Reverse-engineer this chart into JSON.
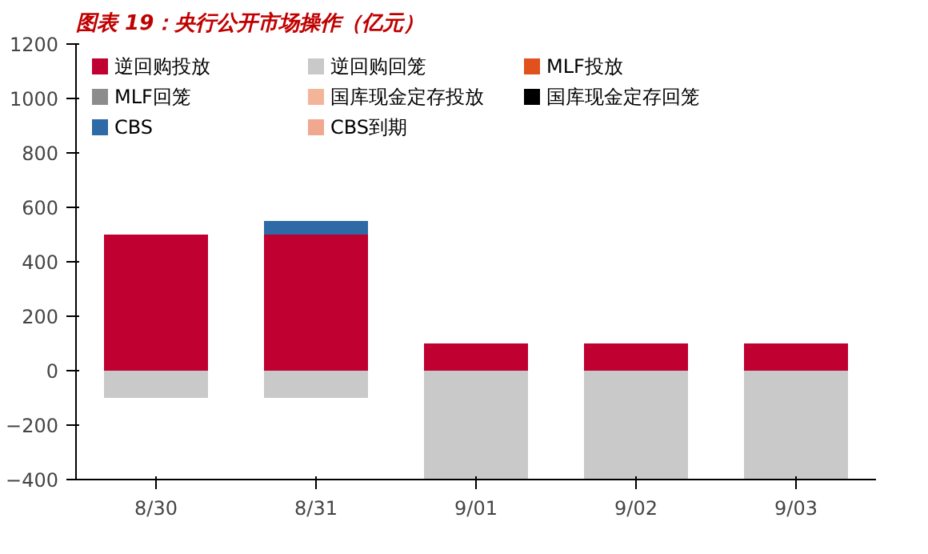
{
  "chart_data": {
    "type": "bar",
    "title": "图表 19：央行公开市场操作（亿元）",
    "categories": [
      "8/30",
      "8/31",
      "9/01",
      "9/02",
      "9/03"
    ],
    "stacked": true,
    "ylim": [
      -400,
      1200
    ],
    "yticks": [
      -400,
      -200,
      0,
      200,
      400,
      600,
      800,
      1000,
      1200
    ],
    "grid": false,
    "legend": "top",
    "series": [
      {
        "name": "逆回购投放",
        "color": "#c00030",
        "values": [
          500,
          500,
          100,
          100,
          100
        ]
      },
      {
        "name": "逆回购回笼",
        "color": "#c9c9c9",
        "values": [
          -100,
          -100,
          -400,
          -400,
          -400
        ]
      },
      {
        "name": "MLF投放",
        "color": "#e2501e",
        "values": [
          null,
          null,
          null,
          null,
          null
        ]
      },
      {
        "name": "MLF回笼",
        "color": "#8c8c8c",
        "values": [
          null,
          null,
          null,
          null,
          null
        ]
      },
      {
        "name": "国库现金定存投放",
        "color": "#f4b49a",
        "values": [
          null,
          null,
          null,
          null,
          null
        ]
      },
      {
        "name": "国库现金定存回笼",
        "color": "#000000",
        "values": [
          null,
          null,
          null,
          null,
          null
        ]
      },
      {
        "name": "CBS",
        "color": "#2e6aa6",
        "values": [
          null,
          50,
          null,
          null,
          null
        ]
      },
      {
        "name": "CBS到期",
        "color": "#f0a890",
        "values": [
          null,
          null,
          null,
          null,
          null
        ]
      }
    ]
  }
}
